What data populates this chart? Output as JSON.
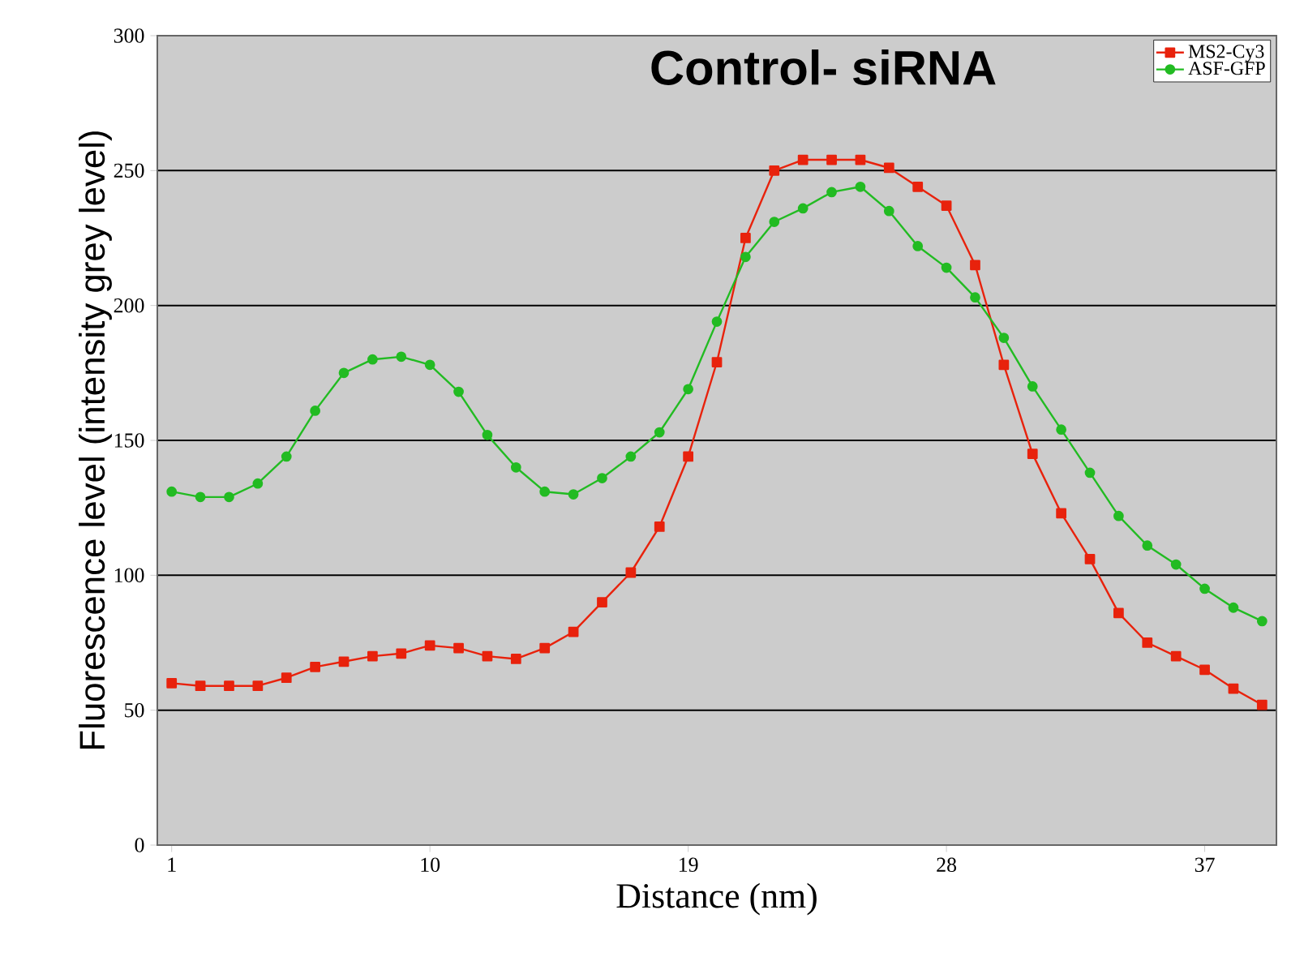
{
  "chart_data": {
    "type": "line",
    "title": "Control- siRNA",
    "xlabel": "Distance (nm)",
    "ylabel": "Fluorescence level (intensity grey level)",
    "x": [
      1,
      2,
      3,
      4,
      5,
      6,
      7,
      8,
      9,
      10,
      11,
      12,
      13,
      14,
      15,
      16,
      17,
      18,
      19,
      20,
      21,
      22,
      23,
      24,
      25,
      26,
      27,
      28,
      29,
      30,
      31,
      32,
      33,
      34,
      35,
      36,
      37,
      38,
      39
    ],
    "xlim": [
      0.5,
      39.5
    ],
    "xticks": [
      1,
      10,
      19,
      28,
      37
    ],
    "ylim": [
      0,
      300
    ],
    "yticks": [
      0,
      50,
      100,
      150,
      200,
      250,
      300
    ],
    "grid": "y",
    "legend": "top right",
    "series": [
      {
        "name": "MS2-Cy3",
        "color": "#e8220c",
        "marker": "square",
        "values": [
          60,
          59,
          59,
          59,
          62,
          66,
          68,
          70,
          71,
          74,
          73,
          70,
          69,
          73,
          79,
          90,
          101,
          118,
          144,
          179,
          225,
          250,
          254,
          254,
          254,
          251,
          244,
          237,
          215,
          178,
          145,
          123,
          106,
          86,
          75,
          70,
          65,
          58,
          52
        ]
      },
      {
        "name": "ASF-GFP",
        "color": "#22bb22",
        "marker": "circle",
        "values": [
          131,
          129,
          129,
          134,
          144,
          161,
          175,
          180,
          181,
          178,
          168,
          152,
          140,
          131,
          130,
          136,
          144,
          153,
          169,
          194,
          218,
          231,
          236,
          242,
          244,
          235,
          222,
          214,
          203,
          188,
          170,
          154,
          138,
          122,
          111,
          104,
          95,
          88,
          83
        ]
      }
    ]
  }
}
